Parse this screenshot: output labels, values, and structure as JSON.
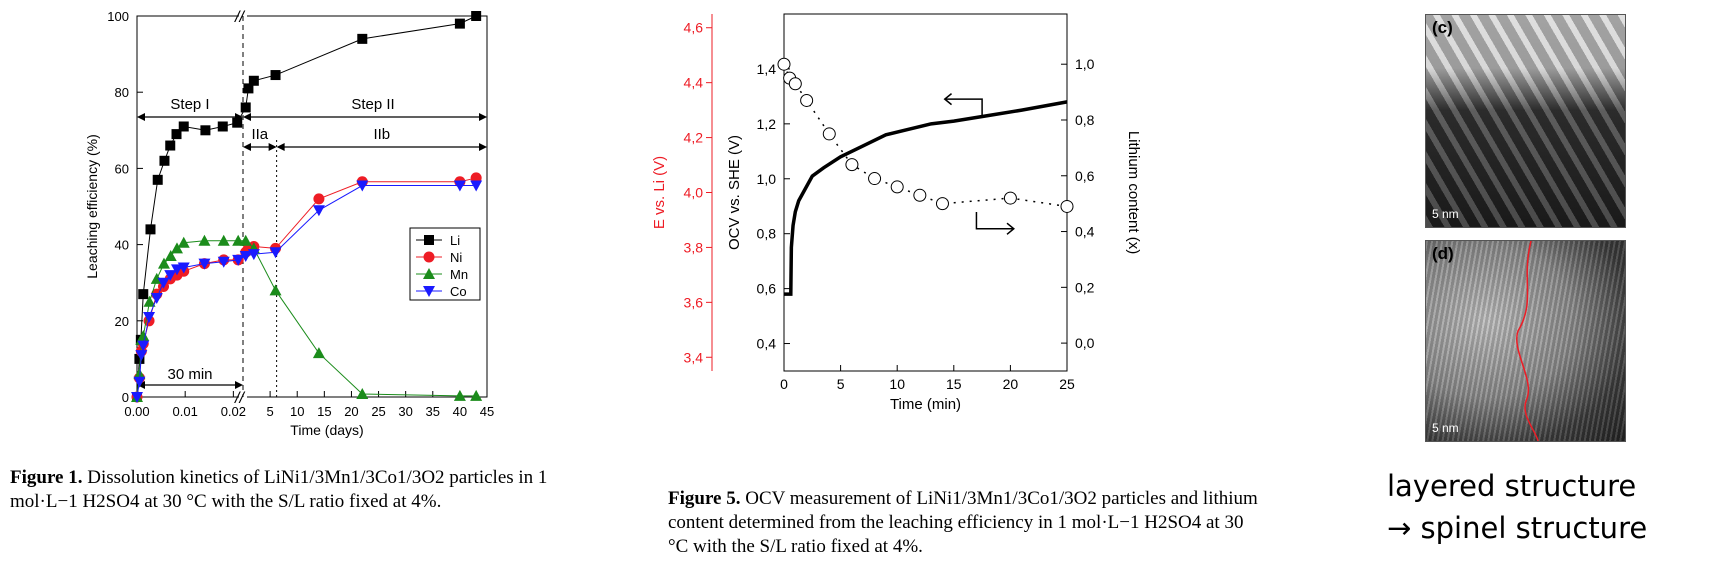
{
  "chart_data": [
    {
      "type": "scatter",
      "panel": "figure-1",
      "xlabel": "Time (days)",
      "ylabel": "Leaching efficiency (%)",
      "ylim": [
        0,
        100
      ],
      "x_axis_broken": true,
      "x_segment_1": {
        "range": [
          0,
          0.022
        ],
        "ticks": [
          "0.00",
          "0.01",
          "0.02"
        ]
      },
      "x_segment_2": {
        "range": [
          0,
          45
        ],
        "ticks": [
          "5",
          "10",
          "15",
          "20",
          "25",
          "30",
          "35",
          "40",
          "45"
        ]
      },
      "yticks": [
        "0",
        "20",
        "40",
        "60",
        "80",
        "100"
      ],
      "legend_position": "middle-right",
      "annotations": [
        "Step I",
        "Step II",
        "IIa",
        "IIb",
        "30 min"
      ],
      "series": [
        {
          "name": "Li",
          "color": "#000000",
          "marker": "square",
          "seg1": [
            [
              0,
              0
            ],
            [
              0.0005,
              10
            ],
            [
              0.0008,
              15
            ],
            [
              0.0013,
              27
            ],
            [
              0.0028,
              44
            ],
            [
              0.0043,
              57
            ],
            [
              0.0057,
              62
            ],
            [
              0.0069,
              66
            ],
            [
              0.0082,
              69
            ],
            [
              0.0097,
              71
            ],
            [
              0.0142,
              70
            ],
            [
              0.0178,
              71
            ],
            [
              0.0208,
              72
            ]
          ],
          "seg2": [
            [
              0.5,
              76
            ],
            [
              1,
              81
            ],
            [
              2,
              83
            ],
            [
              6,
              84.5
            ],
            [
              22,
              94
            ],
            [
              40,
              98
            ],
            [
              43,
              100
            ]
          ]
        },
        {
          "name": "Ni",
          "color": "#ee1c25",
          "marker": "circle",
          "seg1": [
            [
              0,
              0
            ],
            [
              0.0005,
              5
            ],
            [
              0.0009,
              12
            ],
            [
              0.0013,
              14
            ],
            [
              0.0025,
              20
            ],
            [
              0.0041,
              27
            ],
            [
              0.0055,
              29
            ],
            [
              0.0069,
              31
            ],
            [
              0.0083,
              32
            ],
            [
              0.0097,
              33
            ],
            [
              0.014,
              35
            ],
            [
              0.018,
              36
            ],
            [
              0.021,
              36
            ]
          ],
          "seg2": [
            [
              0.5,
              38
            ],
            [
              1,
              39
            ],
            [
              2,
              39.5
            ],
            [
              6,
              39
            ],
            [
              14,
              52
            ],
            [
              22,
              56.5
            ],
            [
              40,
              56.5
            ],
            [
              43,
              57.5
            ]
          ]
        },
        {
          "name": "Mn",
          "color": "#1b8c1b",
          "marker": "triangle-up",
          "seg1": [
            [
              0,
              0
            ],
            [
              0.0005,
              6
            ],
            [
              0.0009,
              15
            ],
            [
              0.0013,
              16
            ],
            [
              0.0026,
              25
            ],
            [
              0.0041,
              31
            ],
            [
              0.0056,
              35
            ],
            [
              0.007,
              37
            ],
            [
              0.0083,
              39
            ],
            [
              0.0097,
              40.5
            ],
            [
              0.014,
              41
            ],
            [
              0.018,
              41
            ],
            [
              0.021,
              41
            ]
          ],
          "seg2": [
            [
              0.5,
              41
            ],
            [
              2,
              39
            ],
            [
              6,
              28
            ],
            [
              14,
              11.5
            ],
            [
              22,
              0.8
            ],
            [
              40,
              0.3
            ],
            [
              43,
              0.3
            ]
          ]
        },
        {
          "name": "Co",
          "color": "#1a1aff",
          "marker": "triangle-down",
          "seg1": [
            [
              0,
              0
            ],
            [
              0.0005,
              4
            ],
            [
              0.0009,
              11
            ],
            [
              0.0013,
              13.5
            ],
            [
              0.0025,
              21
            ],
            [
              0.0041,
              26
            ],
            [
              0.0055,
              30
            ],
            [
              0.0069,
              32
            ],
            [
              0.0083,
              33.5
            ],
            [
              0.0097,
              34
            ],
            [
              0.014,
              35
            ],
            [
              0.018,
              35.5
            ],
            [
              0.021,
              36
            ]
          ],
          "seg2": [
            [
              0.5,
              37
            ],
            [
              2,
              37.5
            ],
            [
              6,
              38
            ],
            [
              14,
              49
            ],
            [
              22,
              55.5
            ],
            [
              40,
              55.5
            ],
            [
              43,
              55.5
            ]
          ]
        }
      ]
    },
    {
      "type": "line",
      "panel": "figure-5",
      "xlabel": "Time (min)",
      "ylabel_left": "OCV vs. SHE (V)",
      "ylabel_far_left": "E vs. Li (V)",
      "ylabel_right": "Lithium content (x)",
      "xlim": [
        0,
        25
      ],
      "ylim_ocv": [
        0.3,
        1.6
      ],
      "ylim_li_metal": [
        3.35,
        4.65
      ],
      "ylim_content": [
        -0.1,
        1.18
      ],
      "xticks": [
        "0",
        "5",
        "10",
        "15",
        "20",
        "25"
      ],
      "yticks_ocv": [
        "0,4",
        "0,6",
        "0,8",
        "1,0",
        "1,2",
        "1,4"
      ],
      "yticks_li": [
        "3,4",
        "3,6",
        "3,8",
        "4,0",
        "4,2",
        "4,4",
        "4,6"
      ],
      "yticks_content": [
        "0,0",
        "0,2",
        "0,4",
        "0,6",
        "0,8",
        "1,0"
      ],
      "series": [
        {
          "name": "",
          "color": "#000000",
          "style": "solid-thick",
          "x": [
            0,
            0.6,
            0.65,
            0.8,
            1.0,
            1.3,
            1.7,
            2.5,
            3.5,
            5,
            7,
            9,
            11,
            13,
            15,
            18,
            21,
            25
          ],
          "y": [
            0.58,
            0.58,
            0.75,
            0.83,
            0.88,
            0.92,
            0.95,
            1.01,
            1.04,
            1.08,
            1.12,
            1.16,
            1.18,
            1.2,
            1.21,
            1.23,
            1.25,
            1.28
          ]
        },
        {
          "name": "",
          "color": "#000000",
          "style": "dotted-circles",
          "x": [
            0,
            0.5,
            1,
            2,
            4,
            6,
            8,
            10,
            12,
            14,
            20,
            25
          ],
          "y": [
            1.0,
            0.95,
            0.93,
            0.87,
            0.75,
            0.64,
            0.59,
            0.56,
            0.53,
            0.5,
            0.52,
            0.49
          ]
        }
      ]
    }
  ],
  "captions": {
    "fig1": {
      "label": "Figure 1.",
      "text": "Dissolution kinetics of LiNi1/3Mn1/3Co1/3O2 particles in 1 mol·L−1 H2SO4 at 30 °C with the S/L ratio fixed at 4%."
    },
    "fig5": {
      "label": "Figure 5.",
      "text": "OCV measurement of LiNi1/3Mn1/3Co1/3O2 particles and lithium content determined from the leaching efficiency in 1 mol·L−1 H2SO4 at 30 °C with the S/L ratio fixed at 4%."
    }
  },
  "tem_images": [
    {
      "label": "(c)",
      "scale": "5 nm"
    },
    {
      "label": "(d)",
      "scale": "5 nm"
    }
  ],
  "note": {
    "line1": "layered structure",
    "line2": "→ spinel structure"
  },
  "colors": {
    "li": "#000000",
    "ni": "#ee1c25",
    "mn": "#1b8c1b",
    "co": "#1a1aff",
    "red_axis": "#ee1c25"
  }
}
